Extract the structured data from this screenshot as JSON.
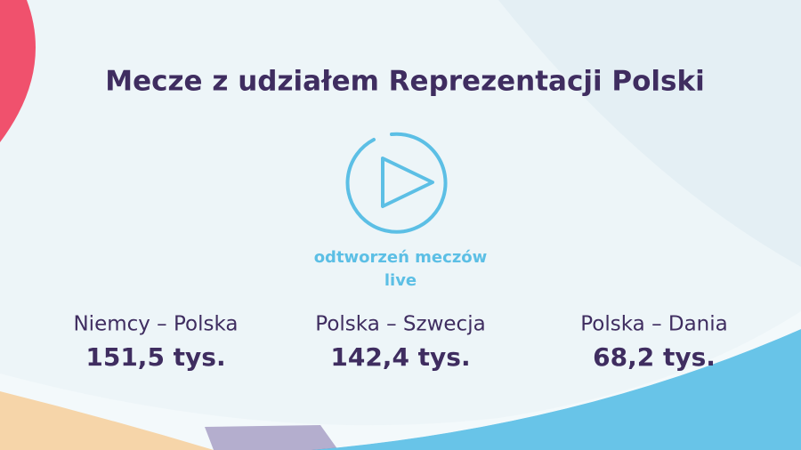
{
  "title": "Mecze z udziałem Reprezentacji Polski",
  "caption": [
    "odtworzeń meczów",
    "live"
  ],
  "matches": [
    {
      "name": "Niemcy – Polska",
      "value": "151,5 tys."
    },
    {
      "name": "Polska – Szwecja",
      "value": "142,4 tys."
    },
    {
      "name": "Polska – Dania",
      "value": "68,2 tys."
    }
  ]
}
